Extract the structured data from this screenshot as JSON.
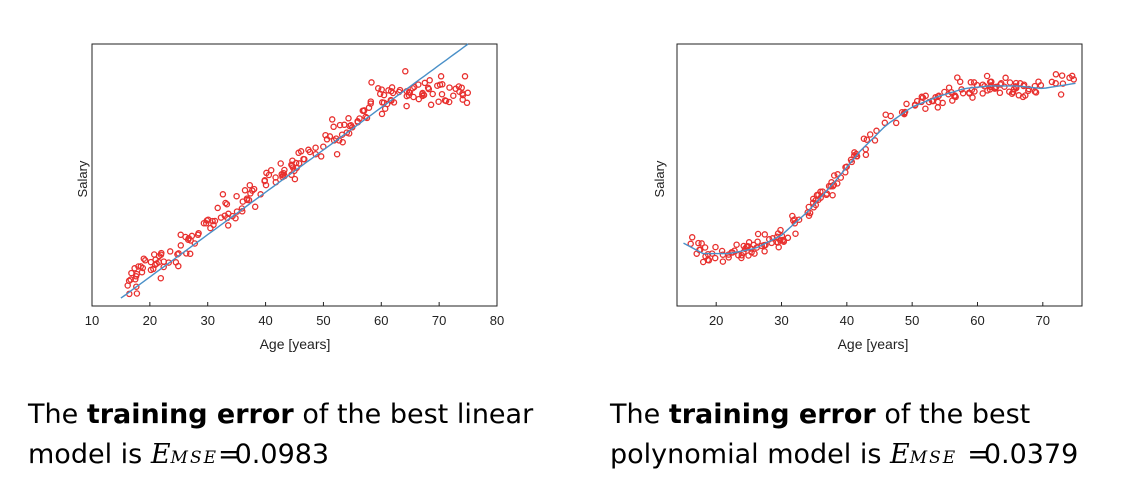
{
  "chart_data": [
    {
      "type": "scatter",
      "ylabel": "Salary",
      "xlabel": "Age [years]",
      "xlim": [
        10,
        80
      ],
      "ylim": [
        0,
        1
      ],
      "xticks": [
        "10",
        "20",
        "30",
        "40",
        "50",
        "60",
        "70",
        "80"
      ],
      "fit": {
        "type": "linear",
        "x": [
          15,
          75
        ],
        "y": [
          0.03,
          1.0
        ]
      },
      "point_color": "#e8302e",
      "line_color": "#4a90c8"
    },
    {
      "type": "scatter",
      "ylabel": "Salary",
      "xlabel": "Age [years]",
      "xlim": [
        14,
        76
      ],
      "ylim": [
        0,
        1
      ],
      "xticks": [
        "20",
        "30",
        "40",
        "50",
        "60",
        "70"
      ],
      "fit": {
        "type": "polynomial",
        "x": [
          15,
          18,
          22,
          26,
          30,
          34,
          38,
          42,
          46,
          50,
          54,
          58,
          62,
          66,
          70,
          75
        ],
        "y": [
          0.24,
          0.2,
          0.2,
          0.22,
          0.27,
          0.36,
          0.47,
          0.59,
          0.69,
          0.76,
          0.8,
          0.83,
          0.84,
          0.84,
          0.83,
          0.85
        ]
      },
      "point_color": "#e8302e",
      "line_color": "#4a90c8"
    }
  ],
  "captions": {
    "left": {
      "pre": "The ",
      "bold": "training error",
      "mid": " of the best linear model is ",
      "emse_E": "E",
      "emse_sub": "MSE",
      "eq": "=",
      "value": "0.0983"
    },
    "right": {
      "pre": "The ",
      "bold": "training error",
      "mid": " of the best polynomial model is ",
      "emse_E": "E",
      "emse_sub": "MSE",
      "eq": "=",
      "value": "0.0379"
    }
  }
}
